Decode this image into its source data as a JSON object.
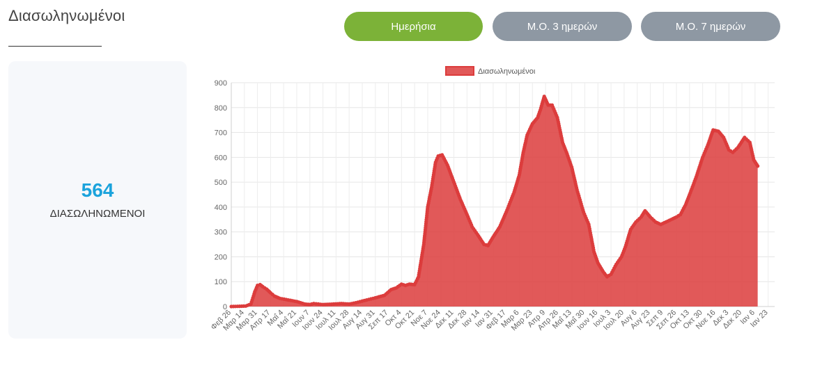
{
  "header": {
    "title": "Διασωληνωμένοι"
  },
  "buttons": {
    "daily": "Ημερήσια",
    "ma3": "Μ.Ο. 3 ημερών",
    "ma7": "Μ.Ο. 7 ημερών"
  },
  "card": {
    "value": "564",
    "label": "ΔΙΑΣΩΛΗΝΩΜΕΝΟΙ"
  },
  "colors": {
    "accent": "#7cb238",
    "inactive": "#8e98a3",
    "value": "#1ba3dc",
    "series": "#dc3c3c",
    "series_fill": "#dc3c3c"
  },
  "chart_data": {
    "type": "area",
    "series": [
      {
        "name": "Διασωληνωμένοι"
      }
    ],
    "ylim": [
      0,
      900
    ],
    "yticks": [
      0,
      100,
      200,
      300,
      400,
      500,
      600,
      700,
      800,
      900
    ],
    "xtick_labels": [
      "Φεβ 26",
      "Μαρ 14",
      "Μαρ 31",
      "Απρ 17",
      "Μαΐ 4",
      "Μαΐ 21",
      "Ιουν 7",
      "Ιουν 24",
      "Ιουλ 11",
      "Ιουλ 28",
      "Αυγ 14",
      "Αυγ 31",
      "Σεπ 17",
      "Οκτ 4",
      "Οκτ 21",
      "Νοε 7",
      "Νοε 24",
      "Δεκ 11",
      "Δεκ 28",
      "Ιαν 14",
      "Ιαν 31",
      "Φεβ 17",
      "Μαρ 6",
      "Μαρ 23",
      "Απρ 9",
      "Απρ 26",
      "Μαΐ 13",
      "Μαΐ 30",
      "Ιουν 16",
      "Ιουλ 3",
      "Ιουλ 20",
      "Αυγ 6",
      "Αυγ 23",
      "Σεπ 9",
      "Σεπ 26",
      "Οκτ 13",
      "Οκτ 30",
      "Νοε 16",
      "Δεκ 3",
      "Δεκ 20",
      "Ιαν 6",
      "Ιαν 23"
    ],
    "keypoints": [
      [
        0,
        0
      ],
      [
        1.1,
        2
      ],
      [
        1.5,
        10
      ],
      [
        1.8,
        60
      ],
      [
        2.0,
        85
      ],
      [
        2.2,
        88
      ],
      [
        2.4,
        80
      ],
      [
        2.7,
        70
      ],
      [
        3.0,
        55
      ],
      [
        3.3,
        42
      ],
      [
        3.7,
        33
      ],
      [
        4.2,
        28
      ],
      [
        5.0,
        20
      ],
      [
        5.6,
        10
      ],
      [
        6.0,
        8
      ],
      [
        6.3,
        12
      ],
      [
        7.0,
        8
      ],
      [
        7.8,
        10
      ],
      [
        8.4,
        12
      ],
      [
        9.0,
        10
      ],
      [
        9.5,
        15
      ],
      [
        10.0,
        22
      ],
      [
        11.0,
        35
      ],
      [
        11.7,
        45
      ],
      [
        12.2,
        68
      ],
      [
        12.6,
        75
      ],
      [
        13.0,
        90
      ],
      [
        13.3,
        85
      ],
      [
        13.6,
        90
      ],
      [
        14.0,
        88
      ],
      [
        14.3,
        120
      ],
      [
        14.7,
        250
      ],
      [
        15.0,
        400
      ],
      [
        15.3,
        480
      ],
      [
        15.6,
        580
      ],
      [
        15.8,
        605
      ],
      [
        16.1,
        610
      ],
      [
        16.5,
        570
      ],
      [
        17.0,
        500
      ],
      [
        17.5,
        430
      ],
      [
        18.0,
        370
      ],
      [
        18.4,
        320
      ],
      [
        18.8,
        290
      ],
      [
        19.3,
        250
      ],
      [
        19.6,
        245
      ],
      [
        20.0,
        280
      ],
      [
        20.5,
        320
      ],
      [
        21.0,
        380
      ],
      [
        21.6,
        460
      ],
      [
        22.0,
        530
      ],
      [
        22.3,
        620
      ],
      [
        22.6,
        690
      ],
      [
        23.0,
        735
      ],
      [
        23.4,
        760
      ],
      [
        23.6,
        790
      ],
      [
        23.9,
        845
      ],
      [
        24.2,
        810
      ],
      [
        24.5,
        810
      ],
      [
        24.9,
        760
      ],
      [
        25.3,
        660
      ],
      [
        25.6,
        620
      ],
      [
        26.0,
        560
      ],
      [
        26.4,
        470
      ],
      [
        26.9,
        380
      ],
      [
        27.3,
        330
      ],
      [
        27.7,
        220
      ],
      [
        28.0,
        175
      ],
      [
        28.4,
        140
      ],
      [
        28.7,
        120
      ],
      [
        29.0,
        130
      ],
      [
        29.4,
        170
      ],
      [
        29.8,
        200
      ],
      [
        30.1,
        240
      ],
      [
        30.5,
        310
      ],
      [
        30.9,
        340
      ],
      [
        31.3,
        360
      ],
      [
        31.6,
        385
      ],
      [
        32.0,
        360
      ],
      [
        32.4,
        340
      ],
      [
        32.8,
        330
      ],
      [
        33.2,
        340
      ],
      [
        33.6,
        350
      ],
      [
        34.0,
        360
      ],
      [
        34.3,
        370
      ],
      [
        34.7,
        410
      ],
      [
        35.0,
        450
      ],
      [
        35.5,
        520
      ],
      [
        36.0,
        600
      ],
      [
        36.4,
        650
      ],
      [
        36.8,
        710
      ],
      [
        37.2,
        705
      ],
      [
        37.6,
        680
      ],
      [
        38.0,
        630
      ],
      [
        38.3,
        620
      ],
      [
        38.7,
        640
      ],
      [
        39.2,
        680
      ],
      [
        39.6,
        660
      ],
      [
        39.9,
        590
      ],
      [
        40.2,
        565
      ]
    ]
  }
}
